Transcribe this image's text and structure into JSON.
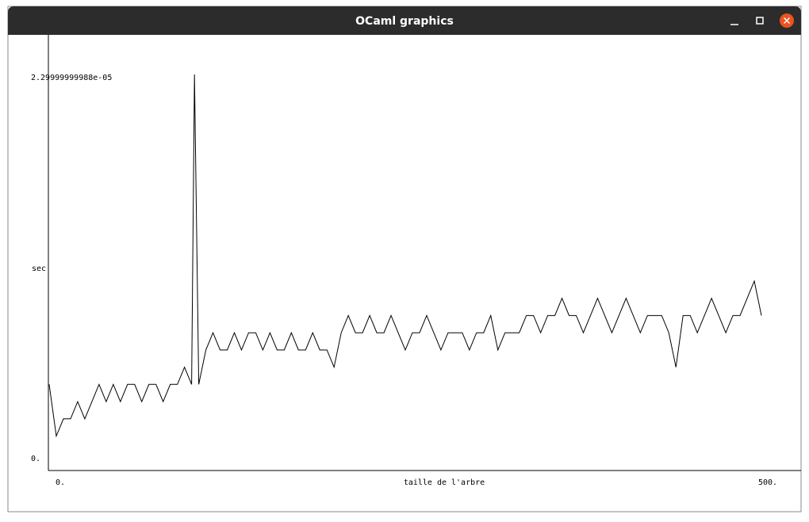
{
  "window": {
    "title": "OCaml graphics"
  },
  "chart_data": {
    "type": "line",
    "ylabel": "sec",
    "xlabel": "taille de l'arbre",
    "x": [
      0,
      5,
      10,
      15,
      20,
      25,
      30,
      35,
      40,
      45,
      50,
      55,
      60,
      65,
      70,
      75,
      80,
      85,
      90,
      95,
      100,
      102,
      105,
      110,
      115,
      120,
      125,
      130,
      135,
      140,
      145,
      150,
      155,
      160,
      165,
      170,
      175,
      180,
      185,
      190,
      195,
      200,
      205,
      210,
      215,
      220,
      225,
      230,
      235,
      240,
      245,
      250,
      255,
      260,
      265,
      270,
      275,
      280,
      285,
      290,
      295,
      300,
      305,
      310,
      315,
      320,
      325,
      330,
      335,
      340,
      345,
      350,
      355,
      360,
      365,
      370,
      375,
      380,
      385,
      390,
      395,
      400,
      405,
      410,
      415,
      420,
      425,
      430,
      435,
      440,
      445,
      450,
      455,
      460,
      465,
      470,
      475,
      480,
      485,
      490,
      495,
      500
    ],
    "values": [
      5e-06,
      2e-06,
      3e-06,
      3e-06,
      4e-06,
      3e-06,
      4e-06,
      5e-06,
      4e-06,
      5e-06,
      4e-06,
      5e-06,
      5e-06,
      4e-06,
      5e-06,
      5e-06,
      4e-06,
      5e-06,
      5e-06,
      6e-06,
      5e-06,
      2.3e-05,
      5e-06,
      7e-06,
      8e-06,
      7e-06,
      7e-06,
      8e-06,
      7e-06,
      8e-06,
      8e-06,
      7e-06,
      8e-06,
      7e-06,
      7e-06,
      8e-06,
      7e-06,
      7e-06,
      8e-06,
      7e-06,
      7e-06,
      6e-06,
      8e-06,
      9e-06,
      8e-06,
      8e-06,
      9e-06,
      8e-06,
      8e-06,
      9e-06,
      8e-06,
      7e-06,
      8e-06,
      8e-06,
      9e-06,
      8e-06,
      7e-06,
      8e-06,
      8e-06,
      8e-06,
      7e-06,
      8e-06,
      8e-06,
      9e-06,
      7e-06,
      8e-06,
      8e-06,
      8e-06,
      9e-06,
      9e-06,
      8e-06,
      9e-06,
      9e-06,
      1e-05,
      9e-06,
      9e-06,
      8e-06,
      9e-06,
      1e-05,
      9e-06,
      8e-06,
      9e-06,
      1e-05,
      9e-06,
      8e-06,
      9e-06,
      9e-06,
      9e-06,
      8e-06,
      6e-06,
      9e-06,
      9e-06,
      8e-06,
      9e-06,
      1e-05,
      9e-06,
      8e-06,
      9e-06,
      9e-06,
      1e-05,
      1.1e-05,
      9e-06
    ],
    "color": "#000000",
    "xlim": [
      0,
      500
    ],
    "xticks": [
      {
        "value": 0,
        "label": "0."
      },
      {
        "value": 500,
        "label": "500."
      }
    ],
    "ylim": [
      0,
      2.3e-05
    ],
    "yticks": [
      {
        "value": 0,
        "label": "0."
      },
      {
        "value": 2.29999999988e-05,
        "label": "2.29999999988e-05"
      }
    ]
  }
}
